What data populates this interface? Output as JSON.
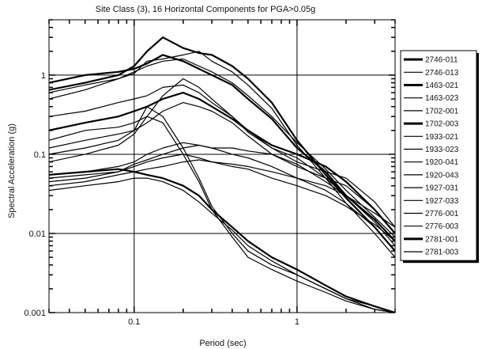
{
  "chart_data": {
    "type": "line",
    "title": "Site Class (3), 16 Horizontal Components for PGA>0.05g",
    "xlabel": "Period (sec)",
    "ylabel": "Spectral Acceleration (g)",
    "x_scale": "log",
    "y_scale": "log",
    "xlim": [
      0.03,
      4
    ],
    "ylim": [
      0.001,
      5
    ],
    "grid": true,
    "legend_position": "right",
    "x_tick_labels": [
      {
        "value": 0.1,
        "label": "0.1"
      },
      {
        "value": 1,
        "label": "1"
      }
    ],
    "y_tick_labels": [
      {
        "value": 1,
        "label": "1"
      },
      {
        "value": 0.1,
        "label": "0.1"
      },
      {
        "value": 0.01,
        "label": "0.01"
      },
      {
        "value": 0.001,
        "label": "0.001"
      }
    ],
    "x": [
      0.03,
      0.05,
      0.08,
      0.1,
      0.12,
      0.15,
      0.2,
      0.25,
      0.3,
      0.4,
      0.5,
      0.7,
      1.0,
      1.5,
      2.0,
      3.0,
      4.0
    ],
    "series": [
      {
        "name": "2746-011",
        "bold": true,
        "values": [
          0.65,
          0.8,
          1.0,
          1.3,
          2.0,
          3.0,
          2.2,
          1.9,
          1.8,
          1.3,
          0.9,
          0.45,
          0.15,
          0.055,
          0.028,
          0.012,
          0.006
        ]
      },
      {
        "name": "2746-013",
        "bold": false,
        "values": [
          0.5,
          0.65,
          0.9,
          1.05,
          1.5,
          1.6,
          1.8,
          2.0,
          1.5,
          1.1,
          0.75,
          0.38,
          0.13,
          0.05,
          0.024,
          0.01,
          0.005
        ]
      },
      {
        "name": "1463-021",
        "bold": true,
        "values": [
          0.8,
          1.0,
          1.1,
          1.2,
          1.4,
          1.8,
          1.5,
          1.2,
          1.0,
          0.75,
          0.5,
          0.28,
          0.12,
          0.06,
          0.03,
          0.015,
          0.008
        ]
      },
      {
        "name": "1463-023",
        "bold": false,
        "values": [
          0.6,
          0.75,
          0.9,
          1.1,
          1.3,
          1.5,
          1.6,
          1.3,
          1.1,
          0.8,
          0.55,
          0.3,
          0.14,
          0.065,
          0.035,
          0.016,
          0.009
        ]
      },
      {
        "name": "1702-001",
        "bold": false,
        "values": [
          0.3,
          0.35,
          0.45,
          0.5,
          0.55,
          0.7,
          0.75,
          0.6,
          0.45,
          0.3,
          0.2,
          0.12,
          0.09,
          0.05,
          0.03,
          0.014,
          0.007
        ]
      },
      {
        "name": "1702-003",
        "bold": true,
        "values": [
          0.2,
          0.25,
          0.3,
          0.35,
          0.4,
          0.5,
          0.6,
          0.5,
          0.4,
          0.28,
          0.2,
          0.13,
          0.1,
          0.07,
          0.045,
          0.02,
          0.01
        ]
      },
      {
        "name": "1933-021",
        "bold": false,
        "values": [
          0.15,
          0.2,
          0.22,
          0.25,
          0.3,
          0.55,
          0.9,
          0.7,
          0.5,
          0.3,
          0.19,
          0.12,
          0.08,
          0.06,
          0.05,
          0.025,
          0.012
        ]
      },
      {
        "name": "1933-023",
        "bold": false,
        "values": [
          0.12,
          0.15,
          0.18,
          0.2,
          0.25,
          0.35,
          0.45,
          0.4,
          0.35,
          0.25,
          0.17,
          0.1,
          0.07,
          0.05,
          0.04,
          0.02,
          0.01
        ]
      },
      {
        "name": "1920-041",
        "bold": false,
        "values": [
          0.055,
          0.06,
          0.07,
          0.08,
          0.1,
          0.12,
          0.14,
          0.13,
          0.12,
          0.12,
          0.11,
          0.1,
          0.075,
          0.045,
          0.03,
          0.015,
          0.008
        ]
      },
      {
        "name": "1920-043",
        "bold": false,
        "values": [
          0.05,
          0.055,
          0.06,
          0.075,
          0.085,
          0.1,
          0.12,
          0.13,
          0.12,
          0.1,
          0.09,
          0.07,
          0.05,
          0.035,
          0.024,
          0.012,
          0.006
        ]
      },
      {
        "name": "1927-031",
        "bold": false,
        "values": [
          0.045,
          0.05,
          0.06,
          0.07,
          0.08,
          0.09,
          0.1,
          0.09,
          0.08,
          0.075,
          0.07,
          0.06,
          0.05,
          0.04,
          0.03,
          0.018,
          0.012
        ]
      },
      {
        "name": "1927-033",
        "bold": false,
        "values": [
          0.04,
          0.045,
          0.055,
          0.06,
          0.065,
          0.07,
          0.08,
          0.085,
          0.08,
          0.07,
          0.065,
          0.05,
          0.04,
          0.03,
          0.022,
          0.013,
          0.008
        ]
      },
      {
        "name": "2776-001",
        "bold": false,
        "values": [
          0.1,
          0.12,
          0.15,
          0.2,
          0.4,
          0.3,
          0.12,
          0.05,
          0.022,
          0.01,
          0.006,
          0.004,
          0.003,
          0.002,
          0.0015,
          0.0012,
          0.001
        ]
      },
      {
        "name": "2776-003",
        "bold": false,
        "values": [
          0.08,
          0.1,
          0.13,
          0.18,
          0.3,
          0.25,
          0.1,
          0.045,
          0.02,
          0.009,
          0.005,
          0.0035,
          0.0025,
          0.0018,
          0.0014,
          0.0011,
          0.001
        ]
      },
      {
        "name": "2781-001",
        "bold": true,
        "values": [
          0.055,
          0.06,
          0.065,
          0.06,
          0.055,
          0.05,
          0.04,
          0.03,
          0.02,
          0.012,
          0.008,
          0.005,
          0.0035,
          0.0022,
          0.0016,
          0.0012,
          0.001
        ]
      },
      {
        "name": "2781-003",
        "bold": false,
        "values": [
          0.035,
          0.04,
          0.045,
          0.05,
          0.05,
          0.045,
          0.035,
          0.025,
          0.018,
          0.011,
          0.007,
          0.0045,
          0.003,
          0.002,
          0.0015,
          0.0011,
          0.001
        ]
      }
    ]
  }
}
